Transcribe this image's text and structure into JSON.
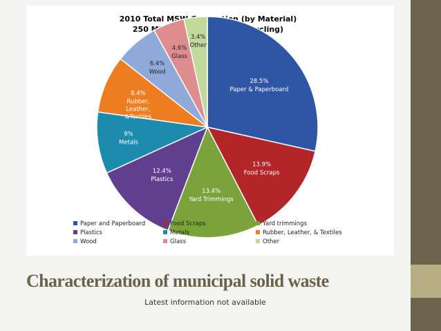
{
  "slide": {
    "title": "Characterization of municipal solid waste",
    "subtitle": "Latest information not available"
  },
  "colors": {
    "background": "#f3f3f1",
    "sidebar": "#6b634c",
    "sidebar_accent": "#b7ae86",
    "title": "#6b6348"
  },
  "chart_data": {
    "type": "pie",
    "title": "2010 Total MSW Generation (by Material)",
    "subtitle": "250 Million Tons (Before Recycling)",
    "legend_position": "bottom",
    "slices": [
      {
        "label": "Paper & Paperboard",
        "legend": "Paper and Paperboard",
        "value": 28.5,
        "value_label": "28.5%",
        "color": "#2f56a4"
      },
      {
        "label": "Food Scraps",
        "legend": "Food Scraps",
        "value": 13.9,
        "value_label": "13.9%",
        "color": "#b2262a"
      },
      {
        "label": "Yard Trimmings",
        "legend": "Yard trimmings",
        "value": 13.4,
        "value_label": "13.4%",
        "color": "#7ba33b"
      },
      {
        "label": "Plastics",
        "legend": "Plastics",
        "value": 12.4,
        "value_label": "12.4%",
        "color": "#5f3f8e"
      },
      {
        "label": "Metals",
        "legend": "Metals",
        "value": 9,
        "value_label": "9%",
        "color": "#1d8bae"
      },
      {
        "label": "Rubber, Leather, &Textiles",
        "legend": "Rubber, Leather, & Textiles",
        "value": 8.4,
        "value_label": "8.4%",
        "color": "#ee7d22"
      },
      {
        "label": "Wood",
        "legend": "Wood",
        "value": 6.4,
        "value_label": "6.4%",
        "color": "#8fa9d9"
      },
      {
        "label": "Glass",
        "legend": "Glass",
        "value": 4.6,
        "value_label": "4.6%",
        "color": "#de8d8f"
      },
      {
        "label": "Other",
        "legend": "Other",
        "value": 3.4,
        "value_label": "3.4%",
        "color": "#c1d99a"
      }
    ]
  }
}
